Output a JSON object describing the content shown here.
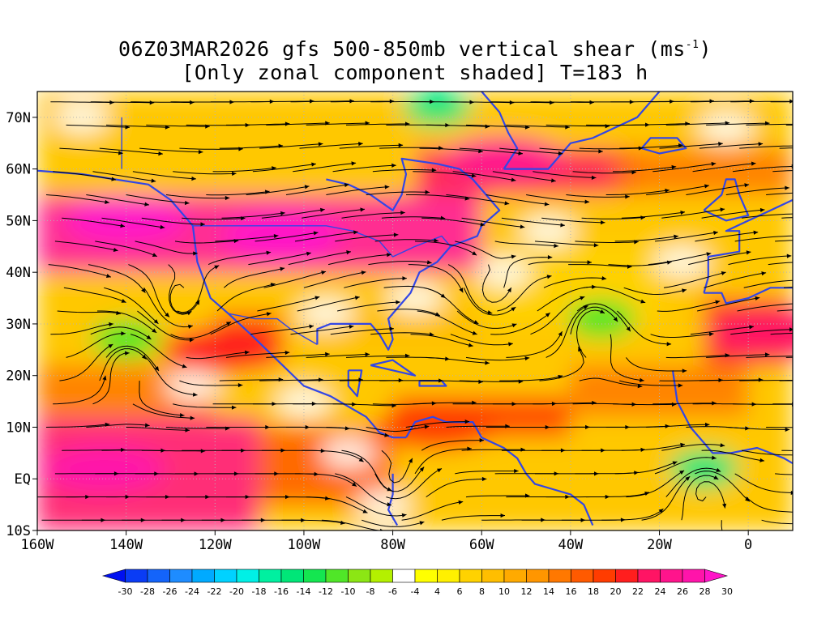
{
  "title": {
    "line1_prefix": "06Z03MAR2026 gfs 500-850mb vertical shear (ms",
    "line1_sup": "-1",
    "line1_suffix": ")",
    "line2": "[Only zonal component shaded] T=183 h"
  },
  "map": {
    "lon_range": [
      -160,
      10
    ],
    "lat_range": [
      -10,
      75
    ],
    "lon_ticks": [
      {
        "value": -160,
        "label": "160W"
      },
      {
        "value": -140,
        "label": "140W"
      },
      {
        "value": -120,
        "label": "120W"
      },
      {
        "value": -100,
        "label": "100W"
      },
      {
        "value": -80,
        "label": "80W"
      },
      {
        "value": -60,
        "label": "60W"
      },
      {
        "value": -40,
        "label": "40W"
      },
      {
        "value": -20,
        "label": "20W"
      },
      {
        "value": 0,
        "label": "0"
      }
    ],
    "lat_ticks": [
      {
        "value": 70,
        "label": "70N"
      },
      {
        "value": 60,
        "label": "60N"
      },
      {
        "value": 50,
        "label": "50N"
      },
      {
        "value": 40,
        "label": "40N"
      },
      {
        "value": 30,
        "label": "30N"
      },
      {
        "value": 20,
        "label": "20N"
      },
      {
        "value": 10,
        "label": "10N"
      },
      {
        "value": 0,
        "label": "EQ"
      },
      {
        "value": -10,
        "label": "10S"
      }
    ],
    "coastline_color": "#3246e6",
    "streamline_color": "#000000",
    "shear_maxima": [
      {
        "lon": -105,
        "lat": 47,
        "value": 30
      },
      {
        "lon": -140,
        "lat": 50,
        "value": 30
      },
      {
        "lon": -145,
        "lat": 2,
        "value": 28
      },
      {
        "lon": -55,
        "lat": 62,
        "value": 26
      },
      {
        "lon": 5,
        "lat": 28,
        "value": 24
      },
      {
        "lon": -70,
        "lat": 10,
        "value": 20
      },
      {
        "lon": -118,
        "lat": 25,
        "value": 22
      },
      {
        "lon": -10,
        "lat": 2,
        "value": -14
      },
      {
        "lon": -140,
        "lat": 27,
        "value": -10
      },
      {
        "lon": -70,
        "lat": 72,
        "value": -14
      },
      {
        "lon": -33,
        "lat": 31,
        "value": -10
      }
    ]
  },
  "colorbar": {
    "labels": [
      "-30",
      "-28",
      "-26",
      "-24",
      "-22",
      "-20",
      "-18",
      "-16",
      "-14",
      "-12",
      "-10",
      "-8",
      "-6",
      "-4",
      "4",
      "6",
      "8",
      "10",
      "12",
      "14",
      "16",
      "18",
      "20",
      "22",
      "24",
      "26",
      "28",
      "30"
    ],
    "colors": [
      "#0010f0",
      "#0a3cf5",
      "#1464fa",
      "#1e8cff",
      "#00aaff",
      "#00d2ff",
      "#00f0e6",
      "#00f0a0",
      "#00e678",
      "#14e650",
      "#50e628",
      "#8ce614",
      "#b4f000",
      "#ffffff",
      "#ffff00",
      "#fff000",
      "#ffd200",
      "#ffbe00",
      "#ffaa00",
      "#ff9600",
      "#ff7800",
      "#ff5a00",
      "#ff3c00",
      "#ff1e1e",
      "#ff1464",
      "#ff148c",
      "#ff14aa",
      "#ff14c8"
    ]
  }
}
